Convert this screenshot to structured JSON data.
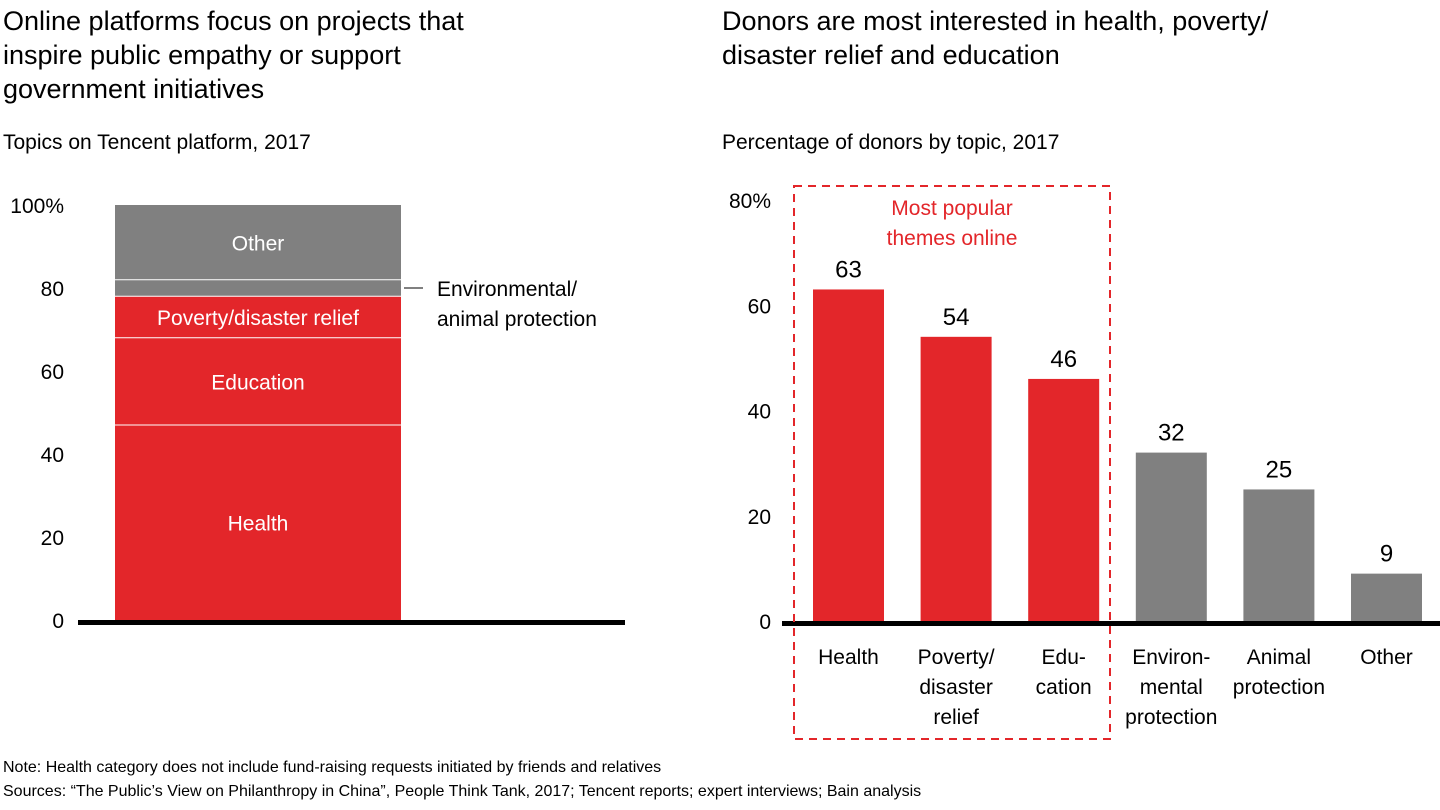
{
  "left": {
    "title": [
      "Online platforms focus on projects that",
      "inspire public empathy or support",
      "government initiatives"
    ],
    "subtitle": "Topics on Tencent platform, 2017"
  },
  "right": {
    "title": [
      "Donors are most interested in health, poverty/",
      "disaster relief and education"
    ],
    "subtitle": "Percentage of donors by topic, 2017"
  },
  "colors": {
    "red": "#e3262a",
    "gray": "#808080",
    "axis": "#000000",
    "label_on_bar": "#ffffff"
  },
  "chart_data": [
    {
      "type": "bar",
      "stacked": true,
      "title": "Online platforms focus on projects that inspire public empathy or support government initiatives",
      "subtitle": "Topics on Tencent platform, 2017",
      "categories": [
        "Tencent platform topics"
      ],
      "ylim": [
        0,
        100
      ],
      "yticks": [
        0,
        20,
        40,
        60,
        80,
        100
      ],
      "ytick_labels": [
        "0",
        "20",
        "40",
        "60",
        "80",
        "100%"
      ],
      "grid": false,
      "series": [
        {
          "name": "Health",
          "label": "Health",
          "value": 47,
          "color": "#e3262a"
        },
        {
          "name": "Education",
          "label": "Education",
          "value": 21,
          "color": "#e3262a"
        },
        {
          "name": "Poverty/disaster relief",
          "label": "Poverty/disaster relief",
          "value": 10,
          "color": "#e3262a"
        },
        {
          "name": "Environmental/animal protection",
          "label": "",
          "value": 4,
          "color": "#808080",
          "callout": [
            "Environmental/",
            "animal protection"
          ]
        },
        {
          "name": "Other",
          "label": "Other",
          "value": 18,
          "color": "#808080"
        }
      ]
    },
    {
      "type": "bar",
      "title": "Donors are most interested in health, poverty/disaster relief and education",
      "subtitle": "Percentage of donors by topic, 2017",
      "categories": [
        "Health",
        "Poverty/disaster relief",
        "Education",
        "Environmental protection",
        "Animal protection",
        "Other"
      ],
      "category_label_lines": [
        [
          "Health"
        ],
        [
          "Poverty/",
          "disaster",
          "relief"
        ],
        [
          "Edu-",
          "cation"
        ],
        [
          "Environ-",
          "mental",
          "protection"
        ],
        [
          "Animal",
          "protection"
        ],
        [
          "Other"
        ]
      ],
      "values": [
        63,
        54,
        46,
        32,
        25,
        9
      ],
      "colors": [
        "#e3262a",
        "#e3262a",
        "#e3262a",
        "#808080",
        "#808080",
        "#808080"
      ],
      "ylim": [
        0,
        80
      ],
      "yticks": [
        0,
        20,
        40,
        60,
        80
      ],
      "ytick_labels": [
        "0",
        "20",
        "40",
        "60",
        "80%"
      ],
      "grid": false,
      "annotation": {
        "text": [
          "Most popular",
          "themes online"
        ],
        "highlight_categories": [
          "Health",
          "Poverty/disaster relief",
          "Education"
        ],
        "style": "dashed-red-box",
        "color": "#e3262a"
      }
    }
  ],
  "footer": {
    "note": "Note: Health category does not include fund-raising requests initiated by friends and relatives",
    "sources": "Sources: “The Public’s View on Philanthropy in China”, People Think Tank, 2017; Tencent reports; expert interviews; Bain analysis"
  }
}
